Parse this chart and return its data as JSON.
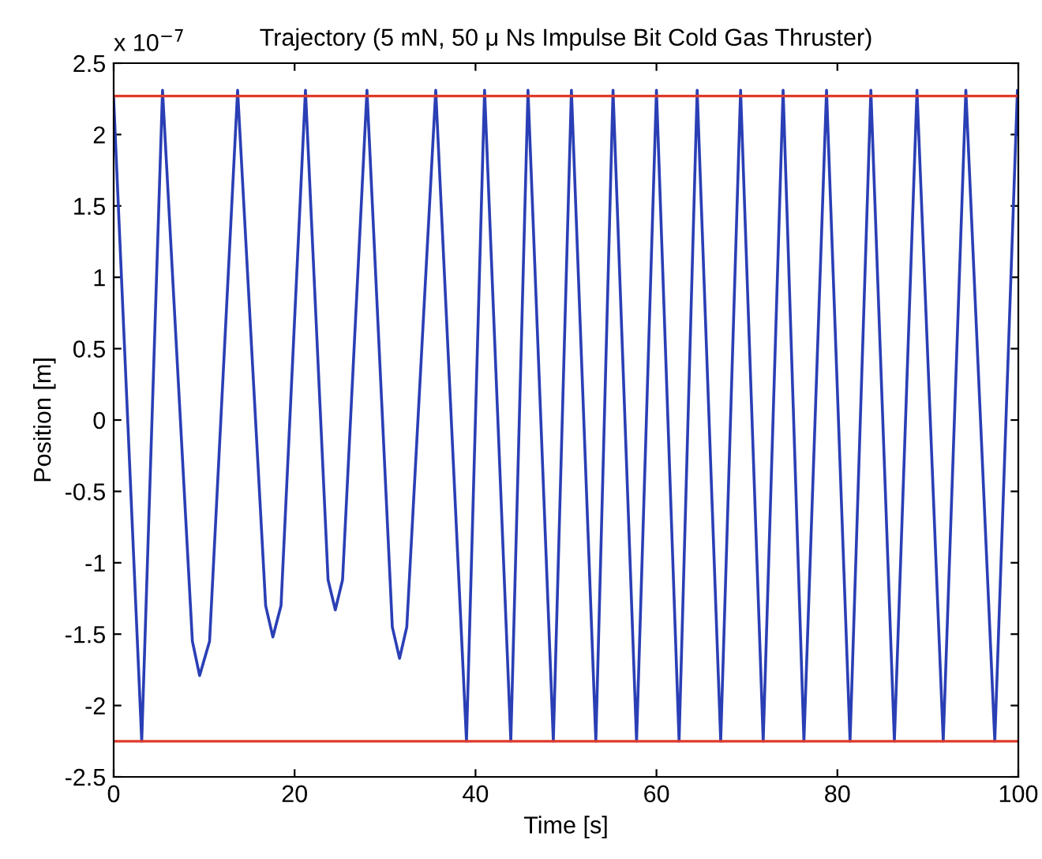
{
  "chart_data": {
    "type": "line",
    "title": "Trajectory (5 mN, 50 μ Ns Impulse Bit Cold Gas Thruster)",
    "xlabel": "Time [s]",
    "ylabel": "Position [m]",
    "annotations": [
      "x 10$^{−7}$"
    ],
    "x": [
      0,
      3.1,
      5.4,
      8.7,
      9.5,
      10.6,
      13.7,
      16.8,
      17.6,
      18.5,
      21.2,
      23.7,
      24.5,
      25.3,
      28.0,
      30.8,
      31.6,
      32.4,
      35.6,
      39.0,
      41.0,
      43.9,
      45.8,
      48.6,
      50.6,
      53.3,
      55.2,
      57.8,
      60.0,
      62.5,
      64.5,
      67.1,
      69.3,
      71.8,
      74.0,
      76.3,
      78.8,
      81.4,
      83.7,
      86.3,
      88.8,
      91.7,
      94.2,
      97.4,
      99.9,
      100
    ],
    "series": [
      {
        "color": "#2a3fb5",
        "values": [
          2.25,
          -2.25,
          2.31,
          -1.55,
          -1.79,
          -1.55,
          2.31,
          -1.3,
          -1.52,
          -1.3,
          2.31,
          -1.12,
          -1.33,
          -1.12,
          2.31,
          -1.45,
          -1.67,
          -1.45,
          2.31,
          -2.25,
          2.31,
          -2.25,
          2.31,
          -2.25,
          2.31,
          -2.25,
          2.31,
          -2.25,
          2.31,
          -2.25,
          2.31,
          -2.25,
          2.31,
          -2.25,
          2.31,
          -2.25,
          2.31,
          -2.25,
          2.31,
          -2.25,
          2.31,
          -2.25,
          2.31,
          -2.25,
          2.31,
          2.0
        ]
      }
    ],
    "ref_lines": [
      {
        "axis": "y",
        "value": 2.27,
        "color": "#e03a2a"
      },
      {
        "axis": "y",
        "value": -2.25,
        "color": "#e03a2a"
      }
    ],
    "xlim": [
      0,
      100
    ],
    "xticks": [
      0,
      20,
      40,
      60,
      80,
      100
    ],
    "ylim": [
      -2.5,
      2.5
    ],
    "yticks": [
      -2.5,
      -2,
      -1.5,
      -1,
      -0.5,
      0,
      0.5,
      1,
      1.5,
      2,
      2.5
    ],
    "grid": false,
    "legend": false,
    "marker": "none",
    "line_style": "solid"
  }
}
